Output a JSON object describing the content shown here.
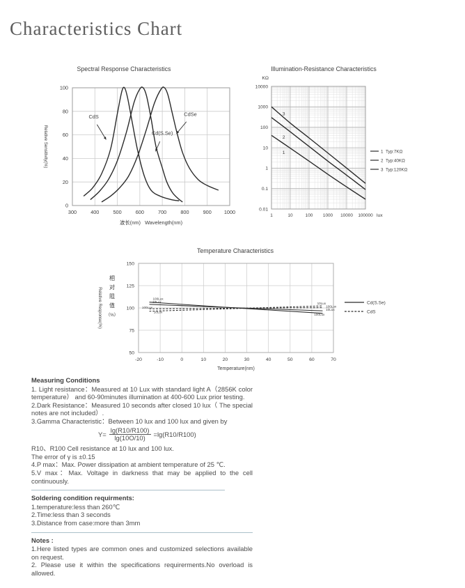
{
  "page": {
    "title": "Characteristics Chart"
  },
  "chart_data": [
    {
      "id": "spectral",
      "type": "line",
      "title": "Spectral Response Characteristics",
      "xlabel": "波长(nm)   Wavelength(nm)",
      "ylabel": "Relative Sensitivity(%)",
      "xlim": [
        300,
        1000
      ],
      "ylim": [
        0,
        100
      ],
      "xticks": [
        300,
        400,
        500,
        600,
        700,
        800,
        900,
        1000
      ],
      "yticks": [
        0,
        20,
        40,
        60,
        80,
        100
      ],
      "grid": "on",
      "series": [
        {
          "name": "CdS",
          "points": [
            [
              350,
              8
            ],
            [
              390,
              15
            ],
            [
              430,
              27
            ],
            [
              470,
              48
            ],
            [
              500,
              78
            ],
            [
              520,
              97
            ],
            [
              532,
              100
            ],
            [
              545,
              92
            ],
            [
              565,
              72
            ],
            [
              590,
              47
            ],
            [
              620,
              25
            ],
            [
              650,
              13
            ],
            [
              690,
              8
            ],
            [
              740,
              5
            ],
            [
              775,
              4
            ]
          ]
        },
        {
          "name": "Cd(S.Se)",
          "points": [
            [
              380,
              5
            ],
            [
              420,
              12
            ],
            [
              460,
              22
            ],
            [
              500,
              38
            ],
            [
              540,
              62
            ],
            [
              575,
              88
            ],
            [
              600,
              99
            ],
            [
              615,
              100
            ],
            [
              630,
              93
            ],
            [
              650,
              74
            ],
            [
              672,
              50
            ],
            [
              700,
              32
            ],
            [
              720,
              20
            ],
            [
              745,
              11
            ],
            [
              770,
              6
            ],
            [
              790,
              3
            ]
          ]
        },
        {
          "name": "CdSe",
          "points": [
            [
              430,
              3
            ],
            [
              470,
              8
            ],
            [
              510,
              15
            ],
            [
              550,
              25
            ],
            [
              590,
              42
            ],
            [
              630,
              65
            ],
            [
              665,
              87
            ],
            [
              695,
              99
            ],
            [
              710,
              100
            ],
            [
              725,
              94
            ],
            [
              745,
              78
            ],
            [
              765,
              62
            ],
            [
              790,
              45
            ],
            [
              820,
              32
            ],
            [
              860,
              22
            ],
            [
              900,
              17
            ],
            [
              950,
              13
            ]
          ]
        }
      ],
      "annotations": [
        {
          "text": "CdS",
          "tx": 395,
          "ty": 74,
          "ax": 450,
          "ay": 56
        },
        {
          "text": "Cd(S.Se)",
          "tx": 700,
          "ty": 60,
          "ax": 670,
          "ay": 46
        },
        {
          "text": "CdSe",
          "tx": 825,
          "ty": 76,
          "ax": 763,
          "ay": 61
        }
      ]
    },
    {
      "id": "illumination",
      "type": "line",
      "title": "Illumination-Resistance Characteristics",
      "y_unit": "KΩ",
      "x_unit": "lux",
      "xlim": [
        1,
        100000
      ],
      "ylim": [
        0.01,
        10000
      ],
      "xticks": [
        1,
        10,
        100,
        1000,
        10000,
        100000
      ],
      "yticks": [
        10000,
        1000,
        100,
        10,
        1,
        0.1,
        0.01
      ],
      "scale": "log-log",
      "grid": "on",
      "series": [
        {
          "name": "1",
          "points": [
            [
              1,
              40
            ],
            [
              10,
              9.5
            ],
            [
              100,
              2.2
            ],
            [
              1000,
              0.5
            ],
            [
              10000,
              0.12
            ],
            [
              100000,
              0.03
            ]
          ]
        },
        {
          "name": "2",
          "points": [
            [
              1,
              300
            ],
            [
              10,
              60
            ],
            [
              100,
              11.5
            ],
            [
              1000,
              2.2
            ],
            [
              10000,
              0.45
            ],
            [
              100000,
              0.09
            ]
          ]
        },
        {
          "name": "3",
          "points": [
            [
              1,
              1000
            ],
            [
              10,
              160
            ],
            [
              100,
              30
            ],
            [
              1000,
              5.5
            ],
            [
              10000,
              1.0
            ],
            [
              100000,
              0.18
            ]
          ]
        }
      ],
      "line_labels": [
        {
          "text": "1",
          "x": 4.5,
          "y": 5
        },
        {
          "text": "2",
          "x": 4.5,
          "y": 28
        },
        {
          "text": "3",
          "x": 4.5,
          "y": 380
        }
      ],
      "legend": [
        {
          "label": "1  Typ:7KΩ"
        },
        {
          "label": "2  Typ:40KΩ"
        },
        {
          "label": "3  Typ:120KΩ"
        }
      ]
    },
    {
      "id": "temperature",
      "type": "line",
      "title": "Temperature Characteristics",
      "xlabel": "Temperature(nm)",
      "ylabel_en": "Relative Response(%)",
      "ylabel_cn": "相对阻值",
      "ylabel_cn_suffix": "（%）",
      "xlim": [
        -20,
        70
      ],
      "ylim": [
        50,
        150
      ],
      "xticks": [
        -20,
        -10,
        0,
        10,
        20,
        30,
        40,
        50,
        60,
        70
      ],
      "yticks": [
        150,
        125,
        100,
        75,
        50
      ],
      "grid": "on",
      "series": [
        {
          "name": "Cd(S.Se)-100Lux",
          "dash": "solid",
          "points": [
            [
              -15,
              106.5
            ],
            [
              25,
              100
            ],
            [
              65,
              94
            ]
          ],
          "left_label": {
            "text": "100Lux",
            "x": -11,
            "y": 108.8
          },
          "right_label": {
            "text": "100Lux",
            "x": 63.5,
            "y": 91.6
          }
        },
        {
          "name": "Cd(S.Se)-10Lux",
          "dash": "solid",
          "points": [
            [
              -15,
              104
            ],
            [
              25,
              100.2
            ],
            [
              65,
              96.8
            ]
          ],
          "left_label": {
            "text": "10Lux",
            "x": -11.5,
            "y": 105.5
          },
          "right_label": {
            "text": "10Lux",
            "x": 66.5,
            "y": 96.9,
            "anchor": "start"
          }
        },
        {
          "name": "CdS-100Lux",
          "dash": "dashed",
          "points": [
            [
              -15,
              99
            ],
            [
              25,
              99.7
            ],
            [
              65,
              100.3
            ]
          ],
          "left_label": {
            "text": "100Lux",
            "x": -16,
            "y": 99.2
          },
          "right_label": {
            "text": "100Lux",
            "x": 66.5,
            "y": 100.2,
            "anchor": "start"
          }
        },
        {
          "name": "CdS-10Lux",
          "dash": "dashed",
          "points": [
            [
              -15,
              96.3
            ],
            [
              25,
              99.3
            ],
            [
              65,
              102.3
            ]
          ],
          "left_label": {
            "text": "10Lux",
            "x": -11,
            "y": 94.2
          },
          "right_label": {
            "text": "10Lux",
            "x": 64.5,
            "y": 103.9
          }
        }
      ],
      "legend": [
        {
          "label": "Cd(S.Se)",
          "dash": "solid"
        },
        {
          "label": "CdS",
          "dash": "dashed"
        }
      ]
    }
  ],
  "sections": {
    "measuring": {
      "title": "Measuring Conditions",
      "para1": "1. Light resistance：Measured at 10 Lux with standard light A（2856K color temperature） and 60-90minutes illumination at 400-600 Lux prior testing.",
      "para2": "2.Dark Resistance：Measured 10 seconds after closed 10 lux（ The special notes are not included）.",
      "para3": "3.Gamma Characteristic：Between 10 lux and 100 lux and given by",
      "formula": {
        "lhs": "Y=",
        "numerator": "lg(R10/R100)",
        "denominator": "lg(10O/10)",
        "rhs": "=lg(R10/R100)"
      },
      "para4": "R10、R100 Cell resistance at 10 lux and 100 lux.",
      "para5": "The error of γ is ±0.15",
      "para6": "4.P max：Max. Power dissipation at ambient temperature of 25 ℃.",
      "para7": "5.V max：Max. Voltage in darkness that may be applied to the cell continuously."
    },
    "soldering": {
      "title": "Soldering condition requirments:",
      "items": [
        "1.temperature:less than 260℃",
        "2.Time:less than 3 seconds",
        "3.Distance from case:more than 3mm"
      ]
    },
    "notes": {
      "title": "Notes :",
      "items": [
        "1.Here listed types are common ones and customized selections available on request.",
        "2. Please use it within the specifications requirerments.No overload is allowed."
      ]
    }
  }
}
